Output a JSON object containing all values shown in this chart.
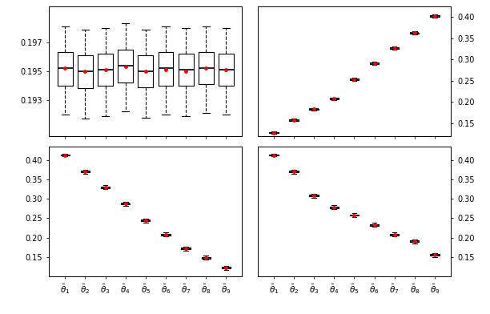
{
  "n_groups": 9,
  "xlabels": [
    "$\\bar{\\theta}_1$",
    "$\\bar{\\theta}_2$",
    "$\\bar{\\theta}_3$",
    "$\\bar{\\theta}_4$",
    "$\\bar{\\theta}_5$",
    "$\\bar{\\theta}_6$",
    "$\\bar{\\theta}_7$",
    "$\\bar{\\theta}_8$",
    "$\\bar{\\theta}_9$"
  ],
  "panel_top_left": {
    "ylim": [
      0.1905,
      0.1995
    ],
    "yticks": [
      0.193,
      0.195,
      0.197
    ],
    "yticklabels": [
      "0.193",
      "0.195",
      "0.197"
    ],
    "medians": [
      0.1952,
      0.195,
      0.1951,
      0.1954,
      0.195,
      0.1952,
      0.1951,
      0.1952,
      0.1951
    ],
    "q1": [
      0.194,
      0.1938,
      0.194,
      0.1942,
      0.1939,
      0.194,
      0.194,
      0.1941,
      0.194
    ],
    "q3": [
      0.1963,
      0.1961,
      0.1962,
      0.1965,
      0.1961,
      0.1963,
      0.1962,
      0.1963,
      0.1962
    ],
    "whislo": [
      0.192,
      0.1917,
      0.1919,
      0.1922,
      0.1918,
      0.192,
      0.1919,
      0.1921,
      0.192
    ],
    "whishi": [
      0.1981,
      0.1979,
      0.198,
      0.1983,
      0.1979,
      0.1981,
      0.198,
      0.1981,
      0.198
    ],
    "means": [
      0.1952,
      0.195,
      0.1951,
      0.1953,
      0.195,
      0.1951,
      0.195,
      0.1952,
      0.1951
    ],
    "whisker_style": "--",
    "box_width": 0.75
  },
  "panel_top_right": {
    "ylim": [
      0.12,
      0.425
    ],
    "yticks": [
      0.15,
      0.2,
      0.25,
      0.3,
      0.35,
      0.4
    ],
    "yticklabels": [
      "0.15",
      "0.20",
      "0.25",
      "0.30",
      "0.35",
      "0.40"
    ],
    "medians": [
      0.128,
      0.158,
      0.183,
      0.208,
      0.253,
      0.291,
      0.327,
      0.362,
      0.402
    ],
    "q1": [
      0.1265,
      0.1565,
      0.1815,
      0.2065,
      0.2515,
      0.2895,
      0.3255,
      0.3605,
      0.4005
    ],
    "q3": [
      0.1295,
      0.1595,
      0.1845,
      0.2095,
      0.2545,
      0.2925,
      0.3285,
      0.3635,
      0.4035
    ],
    "whislo": [
      0.125,
      0.155,
      0.18,
      0.205,
      0.249,
      0.287,
      0.323,
      0.358,
      0.398
    ],
    "whishi": [
      0.131,
      0.161,
      0.186,
      0.211,
      0.257,
      0.295,
      0.331,
      0.366,
      0.406
    ],
    "means": [
      0.128,
      0.158,
      0.183,
      0.208,
      0.253,
      0.291,
      0.327,
      0.362,
      0.402
    ],
    "whisker_style": "-",
    "box_width": 0.45
  },
  "panel_bot_left": {
    "ylim": [
      0.1,
      0.435
    ],
    "yticks": [
      0.15,
      0.2,
      0.25,
      0.3,
      0.35,
      0.4
    ],
    "yticklabels": [
      "0.15",
      "0.20",
      "0.25",
      "0.30",
      "0.35",
      "0.40"
    ],
    "medians": [
      0.413,
      0.37,
      0.33,
      0.287,
      0.244,
      0.208,
      0.172,
      0.148,
      0.122
    ],
    "q1": [
      0.4115,
      0.368,
      0.328,
      0.285,
      0.242,
      0.206,
      0.17,
      0.146,
      0.12
    ],
    "q3": [
      0.4145,
      0.372,
      0.332,
      0.289,
      0.246,
      0.21,
      0.174,
      0.15,
      0.124
    ],
    "whislo": [
      0.409,
      0.365,
      0.325,
      0.282,
      0.239,
      0.203,
      0.167,
      0.143,
      0.117
    ],
    "whishi": [
      0.417,
      0.375,
      0.335,
      0.292,
      0.249,
      0.213,
      0.177,
      0.153,
      0.127
    ],
    "means": [
      0.413,
      0.37,
      0.33,
      0.287,
      0.244,
      0.208,
      0.172,
      0.148,
      0.122
    ],
    "whisker_style": "-",
    "box_width": 0.45
  },
  "panel_bot_right": {
    "ylim": [
      0.1,
      0.435
    ],
    "yticks": [
      0.15,
      0.2,
      0.25,
      0.3,
      0.35,
      0.4
    ],
    "yticklabels": [
      "0.15",
      "0.20",
      "0.25",
      "0.30",
      "0.35",
      "0.40"
    ],
    "medians": [
      0.413,
      0.37,
      0.308,
      0.278,
      0.258,
      0.233,
      0.208,
      0.19,
      0.155
    ],
    "q1": [
      0.4115,
      0.368,
      0.306,
      0.276,
      0.256,
      0.231,
      0.206,
      0.188,
      0.153
    ],
    "q3": [
      0.4145,
      0.372,
      0.31,
      0.28,
      0.26,
      0.235,
      0.21,
      0.192,
      0.157
    ],
    "whislo": [
      0.409,
      0.365,
      0.303,
      0.273,
      0.253,
      0.228,
      0.203,
      0.185,
      0.15
    ],
    "whishi": [
      0.417,
      0.375,
      0.313,
      0.283,
      0.263,
      0.238,
      0.213,
      0.195,
      0.16
    ],
    "means": [
      0.413,
      0.37,
      0.308,
      0.278,
      0.258,
      0.233,
      0.208,
      0.19,
      0.155
    ],
    "whisker_style": "-",
    "box_width": 0.45
  },
  "mean_color": "red",
  "bg_color": "white",
  "figsize": [
    6.12,
    3.92
  ],
  "dpi": 100
}
